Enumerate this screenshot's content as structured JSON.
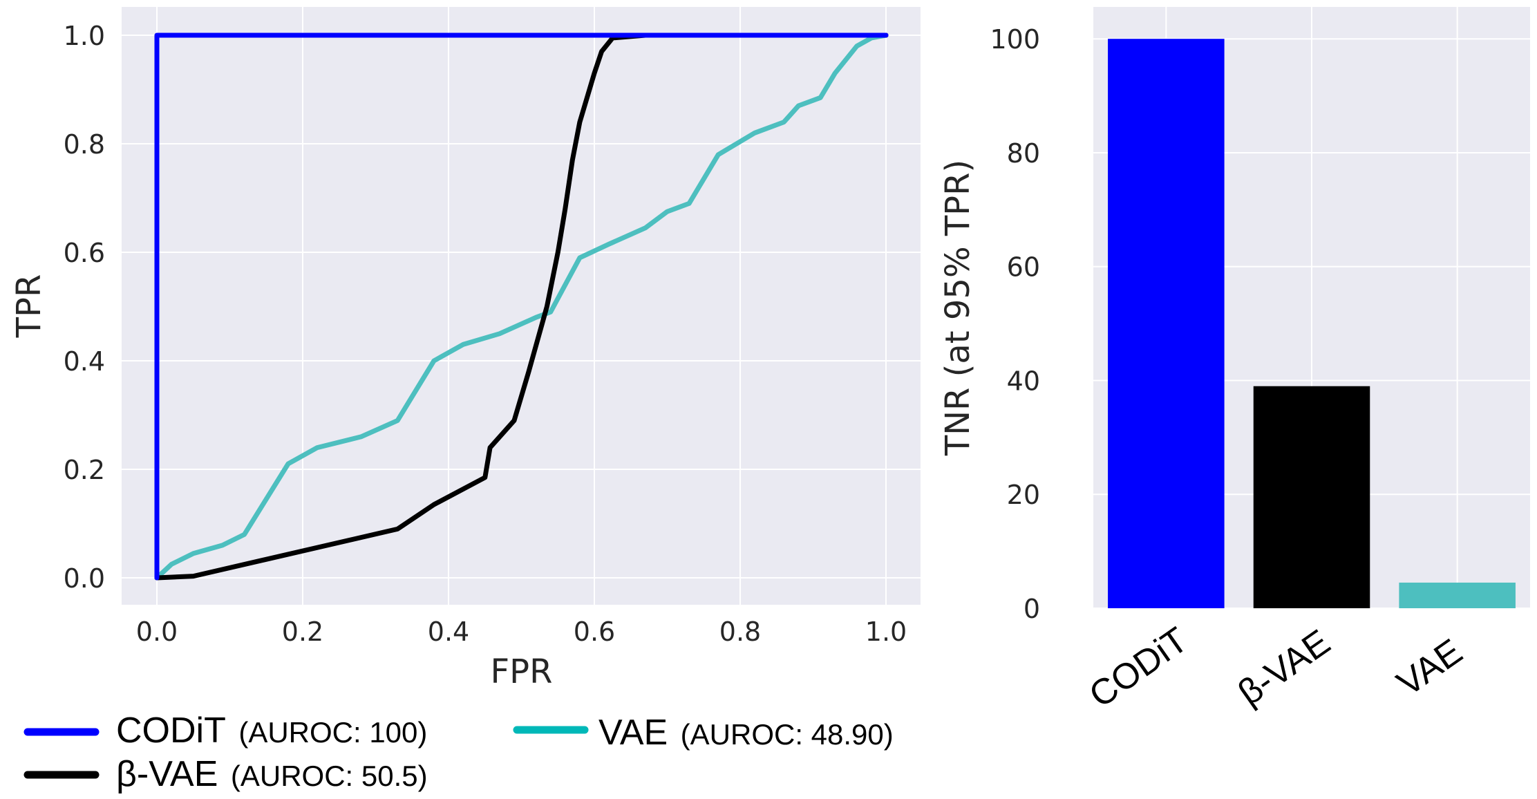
{
  "chart_data": [
    {
      "type": "line",
      "title": "",
      "xlabel": "FPR",
      "ylabel": "TPR",
      "xlim": [
        0.0,
        1.0
      ],
      "ylim": [
        0.0,
        1.0
      ],
      "xticks": [
        "0.0",
        "0.2",
        "0.4",
        "0.6",
        "0.8",
        "1.0"
      ],
      "yticks": [
        "0.0",
        "0.2",
        "0.4",
        "0.6",
        "0.8",
        "1.0"
      ],
      "grid": true,
      "legend_position": "bottom",
      "series": [
        {
          "name": "CODiT",
          "legend_note": "(AUROC: 100)",
          "color": "#0000ff",
          "points": [
            [
              0.0,
              0.0
            ],
            [
              0.0,
              1.0
            ],
            [
              1.0,
              1.0
            ]
          ]
        },
        {
          "name": "β-VAE",
          "legend_note": "(AUROC: 50.5)",
          "color": "#000000",
          "points": [
            [
              0.0,
              0.0
            ],
            [
              0.05,
              0.003
            ],
            [
              0.33,
              0.09
            ],
            [
              0.38,
              0.135
            ],
            [
              0.45,
              0.185
            ],
            [
              0.457,
              0.24
            ],
            [
              0.49,
              0.29
            ],
            [
              0.51,
              0.38
            ],
            [
              0.535,
              0.5
            ],
            [
              0.55,
              0.6
            ],
            [
              0.56,
              0.68
            ],
            [
              0.57,
              0.77
            ],
            [
              0.58,
              0.84
            ],
            [
              0.6,
              0.93
            ],
            [
              0.61,
              0.97
            ],
            [
              0.625,
              0.995
            ],
            [
              0.67,
              1.0
            ],
            [
              1.0,
              1.0
            ]
          ]
        },
        {
          "name": "VAE",
          "legend_note": "(AUROC: 48.90)",
          "color": "#4dbfbf",
          "points": [
            [
              0.0,
              0.0
            ],
            [
              0.02,
              0.025
            ],
            [
              0.05,
              0.045
            ],
            [
              0.09,
              0.06
            ],
            [
              0.12,
              0.08
            ],
            [
              0.18,
              0.21
            ],
            [
              0.22,
              0.24
            ],
            [
              0.28,
              0.26
            ],
            [
              0.33,
              0.29
            ],
            [
              0.38,
              0.4
            ],
            [
              0.42,
              0.43
            ],
            [
              0.47,
              0.45
            ],
            [
              0.52,
              0.48
            ],
            [
              0.54,
              0.49
            ],
            [
              0.58,
              0.59
            ],
            [
              0.62,
              0.615
            ],
            [
              0.67,
              0.645
            ],
            [
              0.7,
              0.675
            ],
            [
              0.73,
              0.69
            ],
            [
              0.77,
              0.78
            ],
            [
              0.82,
              0.82
            ],
            [
              0.86,
              0.84
            ],
            [
              0.88,
              0.87
            ],
            [
              0.91,
              0.885
            ],
            [
              0.93,
              0.93
            ],
            [
              0.96,
              0.98
            ],
            [
              0.98,
              0.995
            ],
            [
              1.0,
              1.0
            ]
          ]
        }
      ]
    },
    {
      "type": "bar",
      "title": "",
      "xlabel": "",
      "ylabel": "TNR (at 95% TPR)",
      "ylim": [
        0,
        105
      ],
      "yticks": [
        "0",
        "20",
        "40",
        "60",
        "80",
        "100"
      ],
      "grid": true,
      "categories": [
        "CODiT",
        "β-VAE",
        "VAE"
      ],
      "values": [
        100,
        39,
        4.5
      ],
      "colors": [
        "#0000ff",
        "#000000",
        "#4dbfbf"
      ]
    }
  ],
  "legend": {
    "items": [
      {
        "name": "CODiT",
        "note": "(AUROC: 100)",
        "color": "#0000ff"
      },
      {
        "name": "β-VAE",
        "note": "(AUROC: 50.5)",
        "color": "#000000"
      },
      {
        "name": "VAE",
        "note": "(AUROC: 48.90)",
        "color": "#00b8b8"
      }
    ]
  },
  "colors": {
    "plot_background": "#eaeaf2",
    "grid": "#ffffff",
    "text": "#262626"
  }
}
